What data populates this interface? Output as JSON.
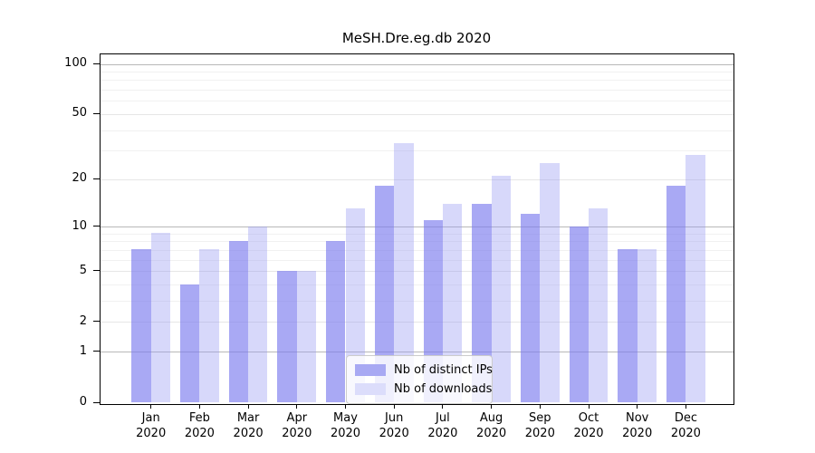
{
  "chart_data": {
    "type": "bar",
    "title": "MeSH.Dre.eg.db 2020",
    "categories": [
      "Jan",
      "Feb",
      "Mar",
      "Apr",
      "May",
      "Jun",
      "Jul",
      "Aug",
      "Sep",
      "Oct",
      "Nov",
      "Dec"
    ],
    "category_year": "2020",
    "series": [
      {
        "name": "Nb of distinct IPs",
        "color": "rgba(124,125,238,0.66)",
        "values": [
          7,
          4,
          8,
          5,
          8,
          18,
          11,
          14,
          12,
          10,
          7,
          18
        ]
      },
      {
        "name": "Nb of downloads",
        "color": "rgba(150,153,243,0.38)",
        "values": [
          9,
          7,
          10,
          5,
          13,
          33,
          14,
          21,
          25,
          13,
          7,
          28
        ]
      }
    ],
    "xlabel": "",
    "ylabel": "",
    "yscale": "log1p",
    "ylim": [
      0,
      115
    ],
    "yticks": [
      0,
      1,
      2,
      5,
      10,
      20,
      50,
      100
    ],
    "decade_gridlines": [
      1,
      10,
      100
    ],
    "minor_gridlines": [
      3,
      4,
      6,
      7,
      8,
      9,
      30,
      40,
      60,
      70,
      80,
      90
    ],
    "grid": "on",
    "legend_position": "lower center",
    "colors": {
      "distinct_ips_hex": "#a8a9f3",
      "downloads_hex": "#dcddfb",
      "axis": "#000000",
      "grid_major": "#b8b8b8",
      "grid_minor": "#f1f1f1"
    }
  }
}
